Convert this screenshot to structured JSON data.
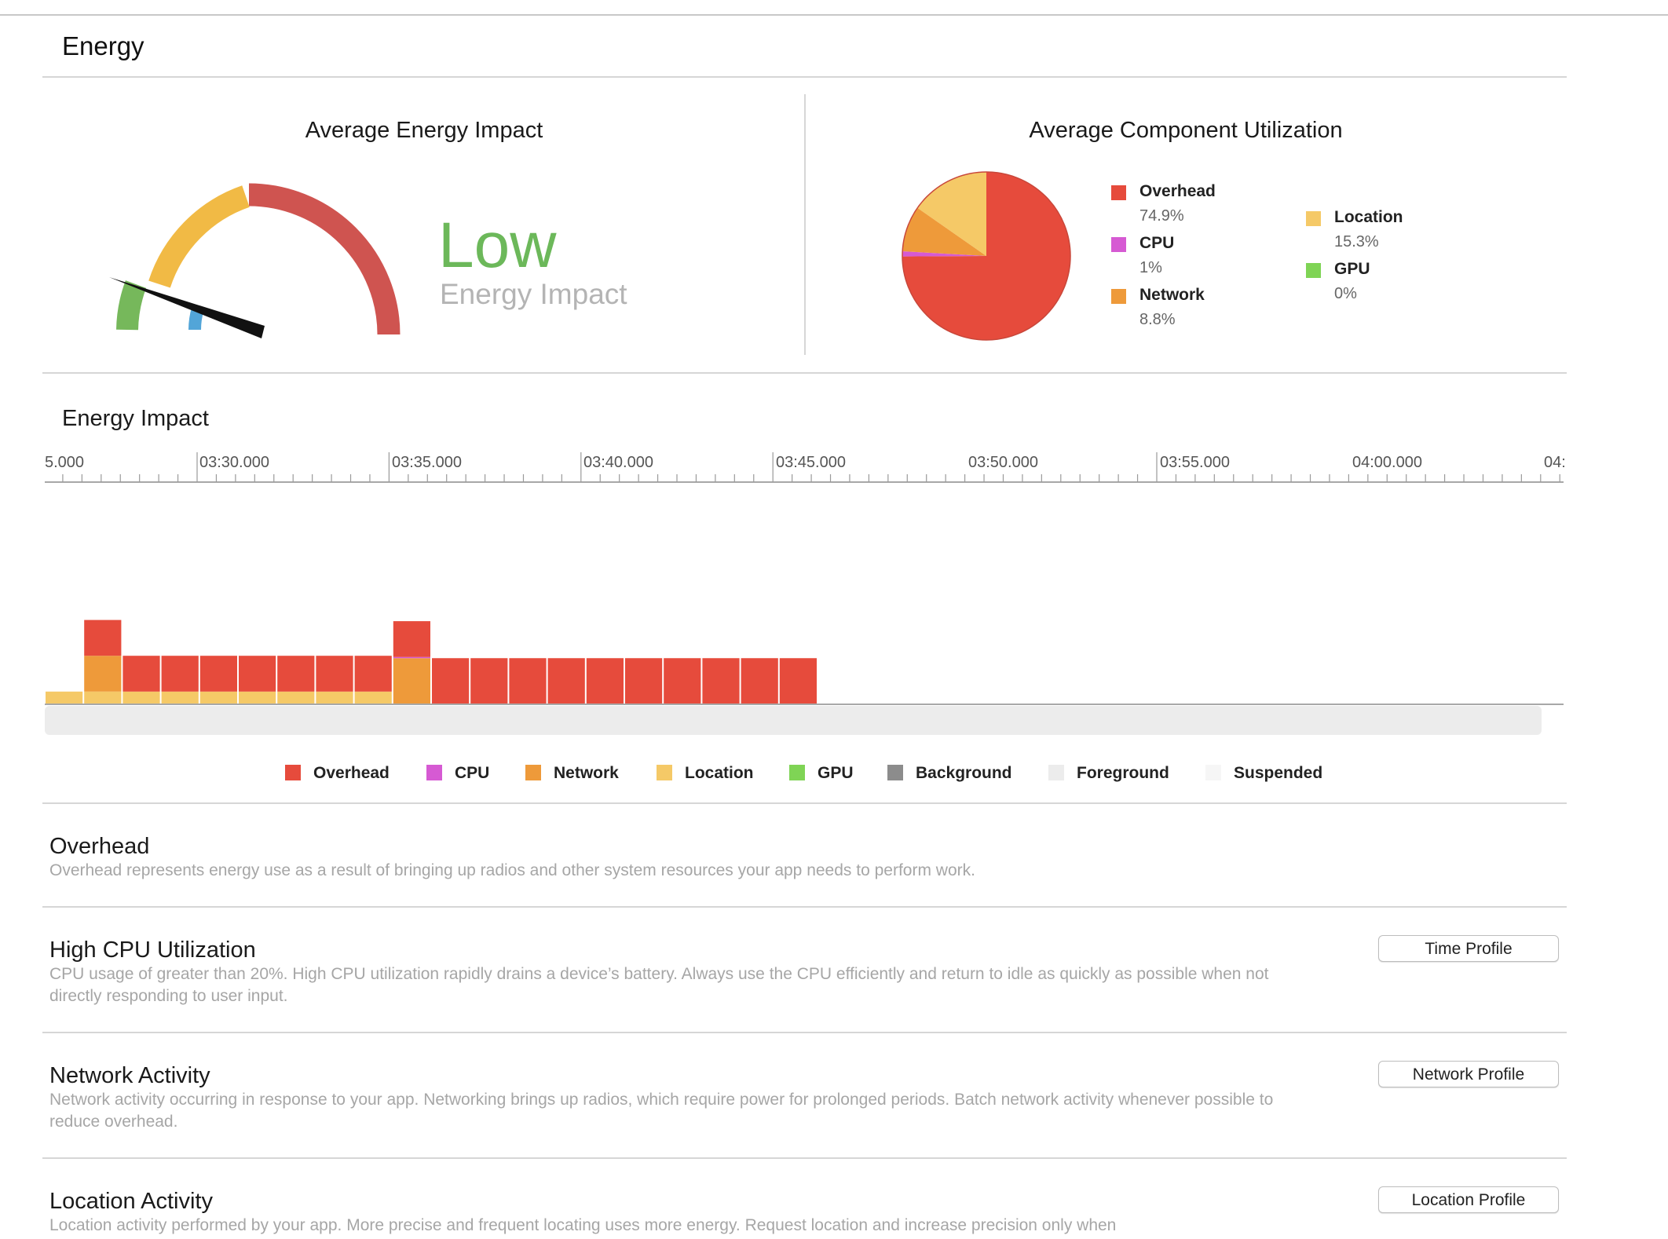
{
  "page": {
    "title": "Energy"
  },
  "energy_impact": {
    "title": "Average Energy Impact",
    "level": "Low",
    "level_label": "Energy Impact",
    "level_color": "#6cb85a"
  },
  "component_utilization": {
    "title": "Average Component Utilization",
    "legend": [
      {
        "name": "Overhead",
        "value": "74.9%",
        "color": "#e64b3c"
      },
      {
        "name": "CPU",
        "value": "1%",
        "color": "#d65ad3"
      },
      {
        "name": "Network",
        "value": "8.8%",
        "color": "#ee9a3a"
      },
      {
        "name": "Location",
        "value": "15.3%",
        "color": "#f5c967"
      },
      {
        "name": "GPU",
        "value": "0%",
        "color": "#7fd455"
      }
    ]
  },
  "chart_data": {
    "type": "bar",
    "title": "Energy Impact",
    "tick_labels": [
      "5.000",
      "03:30.000",
      "03:35.000",
      "03:40.000",
      "03:45.000",
      "03:50.000",
      "03:55.000",
      "04:00.000",
      "04:"
    ],
    "series": [
      {
        "name": "Location",
        "color": "#f5c967",
        "values": [
          1,
          1,
          1,
          1,
          1,
          1,
          1,
          1,
          1,
          0,
          0,
          0,
          0,
          0,
          0,
          0,
          0,
          0,
          0,
          0,
          0
        ]
      },
      {
        "name": "Network",
        "color": "#ee9a3a",
        "values": [
          0,
          3,
          0,
          0,
          0,
          0,
          0,
          0,
          0,
          3.8,
          0,
          0,
          0,
          0,
          0,
          0,
          0,
          0,
          0,
          0,
          0
        ]
      },
      {
        "name": "CPU",
        "color": "#d65ad3",
        "values": [
          0,
          0,
          0,
          0,
          0,
          0,
          0,
          0,
          0,
          0.1,
          0,
          0,
          0,
          0,
          0,
          0,
          0,
          0,
          0,
          0,
          0
        ]
      },
      {
        "name": "Overhead",
        "color": "#e64b3c",
        "values": [
          0,
          3,
          3,
          3,
          3,
          3,
          3,
          3,
          3,
          3,
          3.8,
          3.8,
          3.8,
          3.8,
          3.8,
          3.8,
          3.8,
          3.8,
          3.8,
          3.8,
          0
        ]
      }
    ],
    "legend": [
      {
        "name": "Overhead",
        "color": "#e64b3c"
      },
      {
        "name": "CPU",
        "color": "#d65ad3"
      },
      {
        "name": "Network",
        "color": "#ee9a3a"
      },
      {
        "name": "Location",
        "color": "#f5c967"
      },
      {
        "name": "GPU",
        "color": "#7fd455"
      },
      {
        "name": "Background",
        "color": "#8c8c8c"
      },
      {
        "name": "Foreground",
        "color": "#ececec"
      },
      {
        "name": "Suspended",
        "color": "#f6f6f6"
      }
    ],
    "pie": {
      "type": "pie",
      "slices": [
        {
          "name": "Overhead",
          "value": 74.9,
          "color": "#e64b3c"
        },
        {
          "name": "CPU",
          "value": 1,
          "color": "#d65ad3"
        },
        {
          "name": "Network",
          "value": 8.8,
          "color": "#ee9a3a"
        },
        {
          "name": "Location",
          "value": 15.3,
          "color": "#f5c967"
        },
        {
          "name": "GPU",
          "value": 0,
          "color": "#7fd455"
        }
      ]
    }
  },
  "sections": [
    {
      "title": "Overhead",
      "text": "Overhead represents energy use as a result of bringing up radios and other system resources your app needs to perform work.",
      "button": ""
    },
    {
      "title": "High CPU Utilization",
      "text": "CPU usage of greater than 20%. High CPU utilization rapidly drains a device’s battery.  Always use the CPU efficiently and return to idle as quickly as possible when not directly responding to user input.",
      "button": "Time Profile"
    },
    {
      "title": "Network Activity",
      "text": "Network activity occurring in response to your app. Networking brings up radios, which require power for prolonged periods. Batch network activity whenever possible to reduce overhead.",
      "button": "Network Profile"
    },
    {
      "title": "Location Activity",
      "text": "Location activity performed by your app. More precise and frequent locating uses more energy. Request location and increase precision only when",
      "button": "Location Profile"
    }
  ]
}
